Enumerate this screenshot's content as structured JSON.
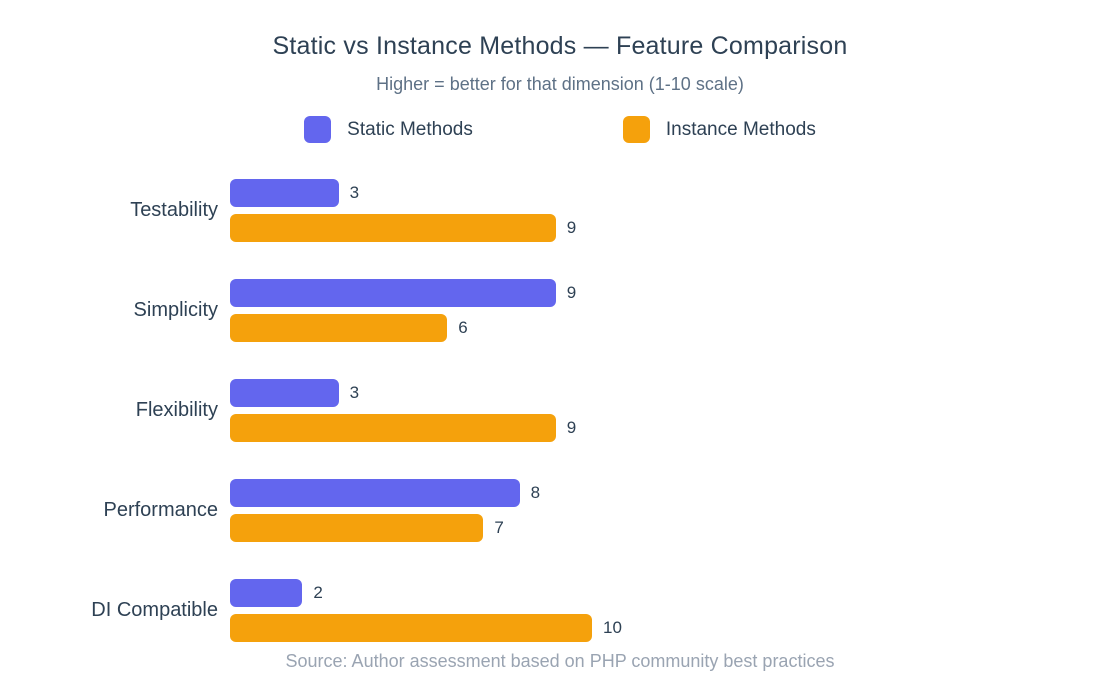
{
  "chart": {
    "title": "Static vs Instance Methods — Feature Comparison",
    "subtitle": "Higher = better for that dimension (1-10 scale)",
    "source_note": "Source: Author assessment based on PHP community best practices"
  },
  "chart_data": {
    "type": "bar",
    "orientation": "horizontal",
    "title": "Static vs Instance Methods — Feature Comparison",
    "subtitle": "Higher = better for that dimension (1-10 scale)",
    "source_note": "Source: Author assessment based on PHP community best practices",
    "categories": [
      "Testability",
      "Simplicity",
      "Flexibility",
      "Performance",
      "DI Compatible"
    ],
    "series": [
      {
        "name": "Static Methods",
        "color": "#6366EE",
        "values": [
          3,
          9,
          3,
          8,
          2
        ]
      },
      {
        "name": "Instance Methods",
        "color": "#F5A10C",
        "values": [
          9,
          6,
          9,
          7,
          10
        ]
      }
    ],
    "xlim": [
      0,
      10
    ],
    "value_labels_shown": true,
    "legend_position": "top",
    "grid": false,
    "palette": {
      "static_bar": "#6366EE",
      "instance_bar": "#F5A10C",
      "title_text": "#2E4154",
      "subtitle_text": "#5E7186",
      "label_text": "#2E4154",
      "source_text": "#9AA4B2",
      "background": "#FFFFFF"
    }
  }
}
